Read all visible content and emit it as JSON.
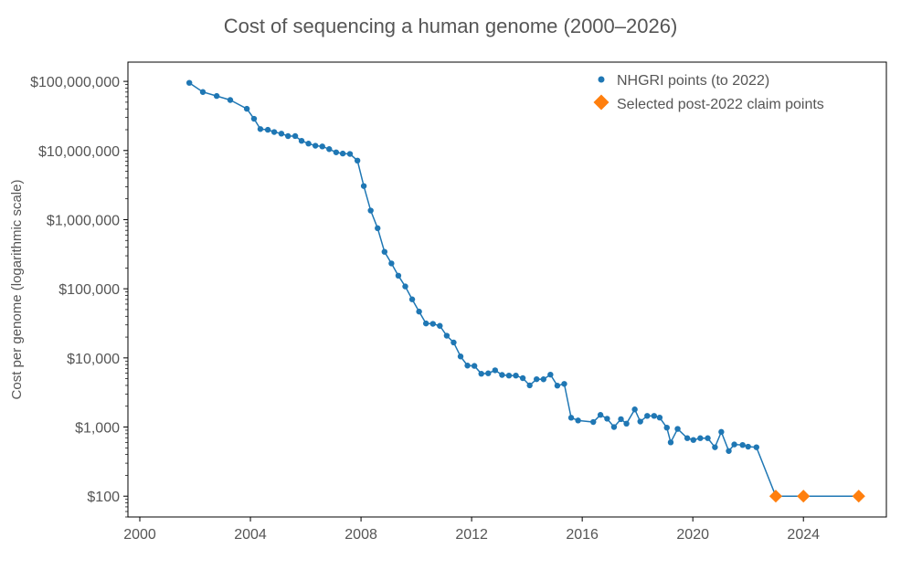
{
  "chart_data": {
    "type": "line",
    "title": "Cost of sequencing a human genome (2000–2026)",
    "xlabel": "",
    "ylabel": "Cost per genome (logarithmic scale)",
    "y_scale": "log",
    "xlim": [
      1999.57,
      2027.0
    ],
    "ylim": [
      50,
      190000000
    ],
    "grid": false,
    "legend_position": "top-right",
    "x_ticks": [
      2000,
      2004,
      2008,
      2012,
      2016,
      2020,
      2024
    ],
    "y_ticks": [
      {
        "value": 100,
        "label": "$100"
      },
      {
        "value": 1000,
        "label": "$1,000"
      },
      {
        "value": 10000,
        "label": "$10,000"
      },
      {
        "value": 100000,
        "label": "$100,000"
      },
      {
        "value": 1000000,
        "label": "$1,000,000"
      },
      {
        "value": 10000000,
        "label": "$10,000,000"
      },
      {
        "value": 100000000,
        "label": "$100,000,000"
      }
    ],
    "colors": {
      "nhgri": "#1f77b4",
      "claims": "#ff7f0e"
    },
    "series": [
      {
        "name": "NHGRI points (to 2022)",
        "marker": "circle",
        "x": [
          2001.79,
          2002.28,
          2002.78,
          2003.27,
          2003.87,
          2004.13,
          2004.36,
          2004.63,
          2004.86,
          2005.12,
          2005.36,
          2005.62,
          2005.85,
          2006.1,
          2006.35,
          2006.6,
          2006.85,
          2007.1,
          2007.34,
          2007.6,
          2007.87,
          2008.1,
          2008.35,
          2008.6,
          2008.85,
          2009.1,
          2009.35,
          2009.6,
          2009.85,
          2010.1,
          2010.35,
          2010.6,
          2010.85,
          2011.1,
          2011.35,
          2011.6,
          2011.85,
          2012.1,
          2012.35,
          2012.6,
          2012.85,
          2013.1,
          2013.35,
          2013.6,
          2013.85,
          2014.1,
          2014.35,
          2014.6,
          2014.85,
          2015.1,
          2015.35,
          2015.6,
          2015.85,
          2016.4,
          2016.66,
          2016.9,
          2017.15,
          2017.4,
          2017.6,
          2017.9,
          2018.1,
          2018.35,
          2018.6,
          2018.8,
          2019.06,
          2019.2,
          2019.45,
          2019.8,
          2020.02,
          2020.27,
          2020.54,
          2020.8,
          2021.03,
          2021.3,
          2021.5,
          2021.8,
          2022.0,
          2022.3
        ],
        "values": [
          95263072,
          70175437,
          61448422,
          53751684,
          40157554,
          28780376,
          20442576,
          19934346,
          18519312,
          17534970,
          16159699,
          16180224,
          13801124,
          12585659,
          11732535,
          11455315,
          10474556,
          9408739,
          9047003,
          8927342,
          7147571,
          3063820,
          1352982,
          752080,
          342502,
          232735,
          154714,
          108065,
          70333,
          46774,
          31512,
          31125,
          29092,
          20963,
          16712,
          10497,
          7743,
          7666,
          5901,
          5985,
          6618,
          5671,
          5550,
          5550,
          5096,
          4008,
          4920,
          4905,
          5731,
          3970,
          4211,
          1363,
          1245,
          1182,
          1500,
          1320,
          1000,
          1300,
          1120,
          1800,
          1200,
          1450,
          1450,
          1370,
          980,
          600,
          940,
          690,
          650,
          690,
          690,
          510,
          850,
          450,
          560,
          550,
          520,
          510
        ]
      },
      {
        "name": "Selected post-2022 claim points",
        "marker": "diamond",
        "x": [
          2023,
          2024,
          2026
        ],
        "values": [
          100,
          100,
          100
        ]
      }
    ]
  }
}
